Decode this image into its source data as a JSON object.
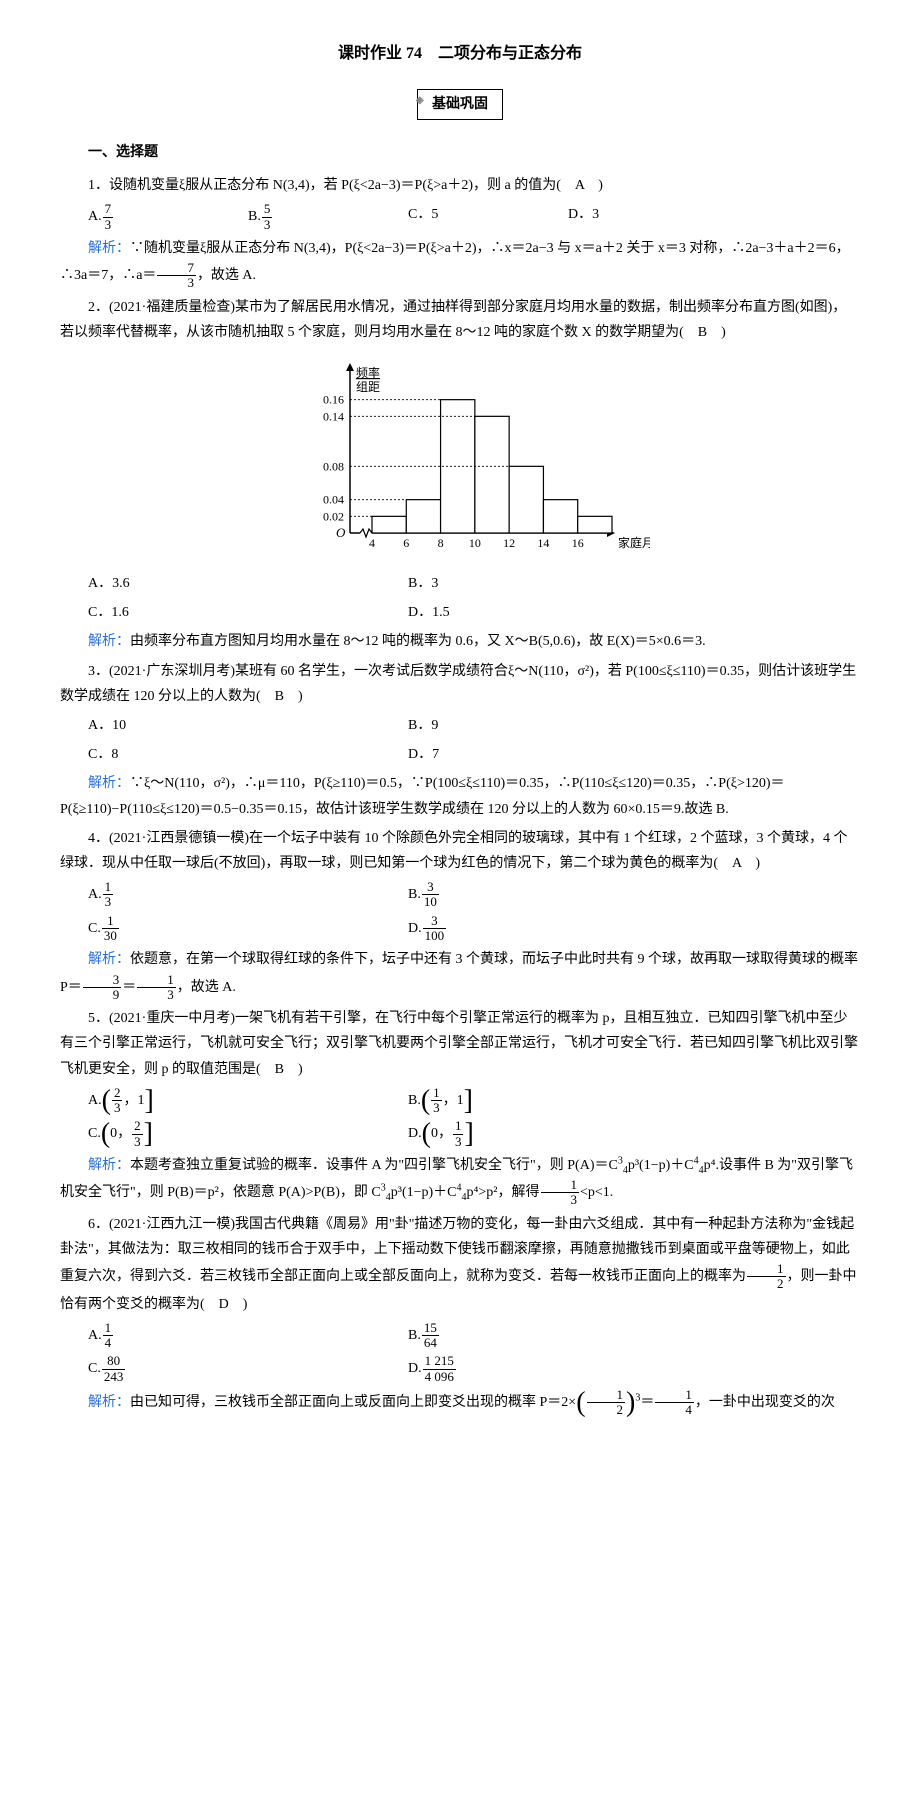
{
  "title": "课时作业 74　二项分布与正态分布",
  "subtitle": "基础巩固",
  "section_head": "一、选择题",
  "q1": {
    "text": "1．设随机变量ξ服从正态分布 N(3,4)，若 P(ξ<2a−3)＝P(ξ>a＋2)，则 a 的值为(　A　)",
    "optA": "7/3",
    "optB": "5/3",
    "optC": "C．5",
    "optD": "D．3",
    "analysis_label": "解析：",
    "analysis": "∵随机变量ξ服从正态分布 N(3,4)，P(ξ<2a−3)＝P(ξ>a＋2)，∴x＝2a−3 与 x＝a＋2 关于 x＝3 对称，∴2a−3＋a＋2＝6，∴3a＝7，∴a＝",
    "analysis_tail": "，故选 A."
  },
  "q2": {
    "text": "2．(2021·福建质量检查)某市为了解居民用水情况，通过抽样得到部分家庭月均用水量的数据，制出频率分布直方图(如图)，若以频率代替概率，从该市随机抽取 5 个家庭，则月均用水量在 8～12 吨的家庭个数 X 的数学期望为(　B　)",
    "optA": "A．3.6",
    "optB": "B．3",
    "optC": "C．1.6",
    "optD": "D．1.5",
    "analysis_label": "解析：",
    "analysis": "由频率分布直方图知月均用水量在 8～12 吨的概率为 0.6，又 X～B(5,0.6)，故 E(X)＝5×0.6＝3.",
    "chart": {
      "ylabel_top": "频率",
      "ylabel_bot": "组距",
      "yticks": [
        0.02,
        0.04,
        0.08,
        0.14,
        0.16
      ],
      "bars": [
        {
          "x": 4,
          "h": 0.02
        },
        {
          "x": 6,
          "h": 0.04
        },
        {
          "x": 8,
          "h": 0.16
        },
        {
          "x": 10,
          "h": 0.14
        },
        {
          "x": 12,
          "h": 0.08
        },
        {
          "x": 14,
          "h": 0.04
        },
        {
          "x": 16,
          "h": 0.02
        }
      ],
      "xlabel": "家庭月均用水量/吨",
      "xticks": [
        4,
        6,
        8,
        10,
        12,
        14,
        16
      ],
      "bar_fill": "#ffffff",
      "bar_stroke": "#000000",
      "grid_dash": "2,2",
      "origin": "O"
    }
  },
  "q3": {
    "text1": "3．(2021·广东深圳月考)某班有 60 名学生，一次考试后数学成绩符合ξ～N(110，σ²)，若 P(100≤ξ≤110)＝0.35，则估计该班学生数学成绩在 120 分以上的人数为(　B　)",
    "optA": "A．10",
    "optB": "B．9",
    "optC": "C．8",
    "optD": "D．7",
    "analysis_label": "解析：",
    "analysis": "∵ξ～N(110，σ²)，∴μ＝110，P(ξ≥110)＝0.5，∵P(100≤ξ≤110)＝0.35，∴P(110≤ξ≤120)＝0.35，∴P(ξ>120)＝P(ξ≥110)−P(110≤ξ≤120)＝0.5−0.35＝0.15，故估计该班学生数学成绩在 120 分以上的人数为 60×0.15＝9.故选 B."
  },
  "q4": {
    "text": "4．(2021·江西景德镇一模)在一个坛子中装有 10 个除颜色外完全相同的玻璃球，其中有 1 个红球，2 个蓝球，3 个黄球，4 个绿球．现从中任取一球后(不放回)，再取一球，则已知第一个球为红色的情况下，第二个球为黄色的概率为(　A　)",
    "analysis_label": "解析：",
    "analysis": "依题意，在第一个球取得红球的条件下，坛子中还有 3 个黄球，而坛子中此时共有 9 个球，故再取一球取得黄球的概率 P＝",
    "analysis_tail": "，故选 A."
  },
  "q5": {
    "text": "5．(2021·重庆一中月考)一架飞机有若干引擎，在飞行中每个引擎正常运行的概率为 p，且相互独立．已知四引擎飞机中至少有三个引擎正常运行，飞机就可安全飞行；双引擎飞机要两个引擎全部正常运行，飞机才可安全飞行．若已知四引擎飞机比双引擎飞机更安全，则 p 的取值范围是(　B　)",
    "analysis_label": "解析：",
    "analysis1": "本题考查独立重复试验的概率．设事件 A 为\"四引擎飞机安全飞行\"，则 P(A)＝C",
    "analysis2": "p³(1−p)＋C",
    "analysis3": "p⁴.设事件 B 为\"双引擎飞机安全飞行\"，则 P(B)＝p²，依题意 P(A)>P(B)，即 C",
    "analysis4": "p³(1−p)＋C",
    "analysis5": "p⁴>p²，解得",
    "analysis6": "<p<1."
  },
  "q6": {
    "text": "6．(2021·江西九江一模)我国古代典籍《周易》用\"卦\"描述万物的变化，每一卦由六爻组成．其中有一种起卦方法称为\"金钱起卦法\"，其做法为：取三枚相同的钱币合于双手中，上下摇动数下使钱币翻滚摩擦，再随意抛撒钱币到桌面或平盘等硬物上，如此重复六次，得到六爻．若三枚钱币全部正面向上或全部反面向上，就称为变爻．若每一枚钱币正面向上的概率为",
    "text_tail": "，则一卦中恰有两个变爻的概率为(　D　)",
    "analysis_label": "解析：",
    "analysis": "由已知可得，三枚钱币全部正面向上或反面向上即变爻出现的概率 P＝2×",
    "analysis_tail": "，一卦中出现变爻的次"
  }
}
